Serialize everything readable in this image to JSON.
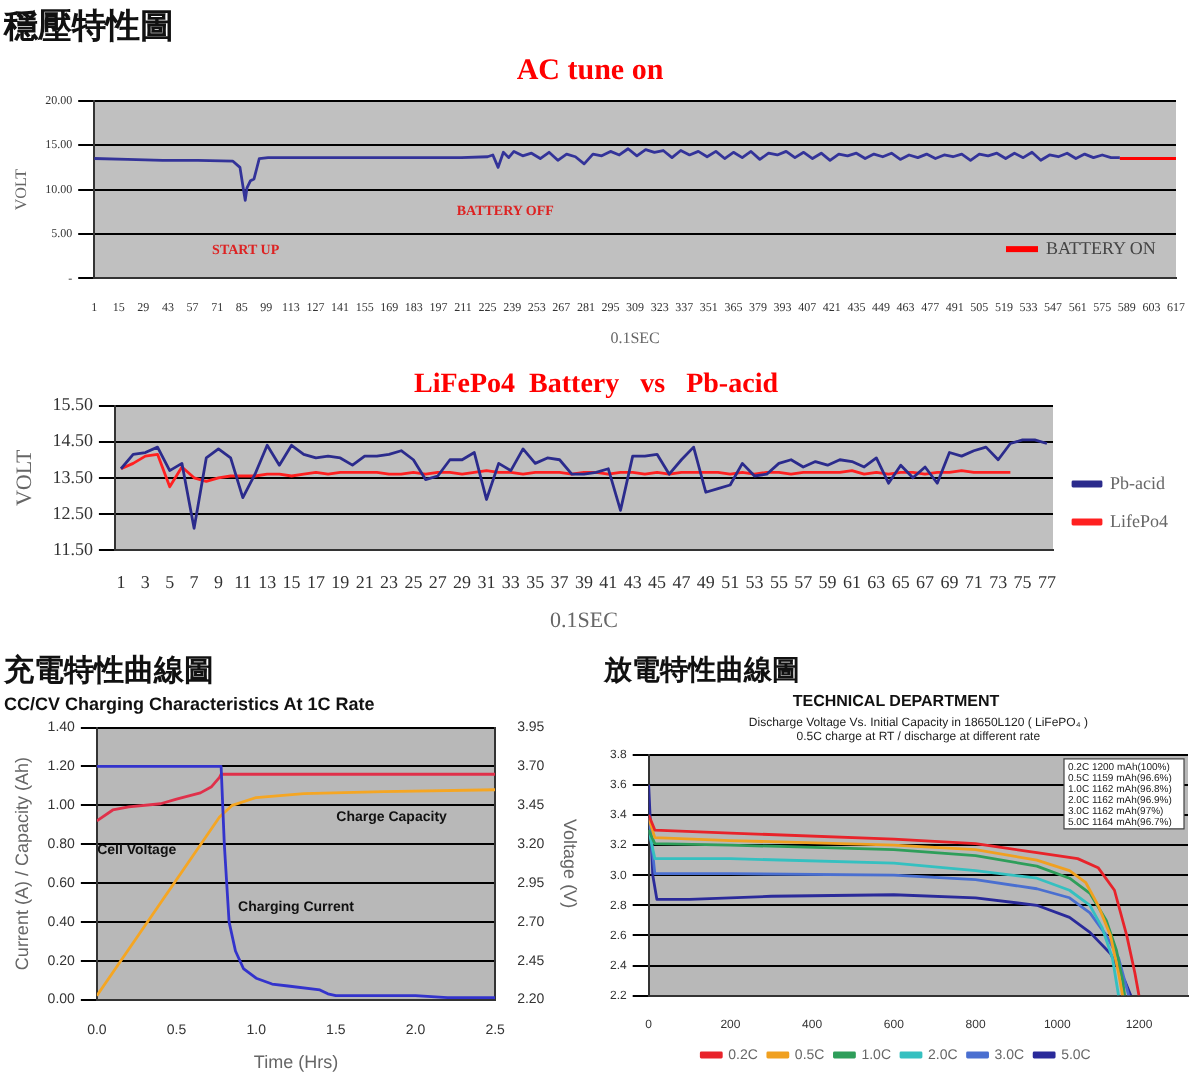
{
  "chart_data": [
    {
      "type": "line",
      "title": "穩壓特性圖",
      "subtitle": "AC tune on",
      "xlabel": "0.1SEC",
      "ylabel": "VOLT",
      "xlim": [
        1,
        617
      ],
      "xticks": [
        1,
        15,
        29,
        43,
        57,
        71,
        85,
        99,
        113,
        127,
        141,
        155,
        169,
        183,
        197,
        211,
        225,
        239,
        253,
        267,
        281,
        295,
        309,
        323,
        337,
        351,
        365,
        379,
        393,
        407,
        421,
        435,
        449,
        463,
        477,
        491,
        505,
        519,
        533,
        547,
        561,
        575,
        589,
        603,
        617
      ],
      "ylim": [
        0,
        20
      ],
      "yticks": [
        {
          "value": 0,
          "label": "-"
        },
        {
          "value": 5,
          "label": "5.00"
        },
        {
          "value": 10,
          "label": "10.00"
        },
        {
          "value": 15,
          "label": "15.00"
        },
        {
          "value": 20,
          "label": "20.00"
        }
      ],
      "grid": "y",
      "legend": "right",
      "marker": "none",
      "line_style": "solid",
      "annotations": [
        "START UP",
        "BATTERY OFF"
      ],
      "series": [
        {
          "color": "#333399",
          "x": [
            1,
            20,
            40,
            60,
            80,
            84,
            86,
            87,
            88,
            90,
            92,
            95,
            100,
            120,
            150,
            180,
            210,
            225,
            228,
            231,
            234,
            237,
            240,
            245,
            250,
            255,
            260,
            265,
            270,
            275,
            280,
            285,
            290,
            295,
            300,
            305,
            310,
            315,
            320,
            325,
            330,
            335,
            340,
            345,
            350,
            355,
            360,
            365,
            370,
            375,
            380,
            385,
            390,
            395,
            400,
            405,
            410,
            415,
            420,
            425,
            430,
            435,
            440,
            445,
            450,
            455,
            460,
            465,
            470,
            475,
            480,
            485,
            490,
            495,
            500,
            505,
            510,
            515,
            520,
            525,
            530,
            535,
            540,
            545,
            550,
            555,
            560,
            565,
            570,
            575,
            580,
            585
          ],
          "values": [
            13.5,
            13.4,
            13.3,
            13.3,
            13.2,
            12.5,
            10,
            8.8,
            10.2,
            11,
            11.2,
            13.5,
            13.6,
            13.6,
            13.6,
            13.6,
            13.6,
            13.7,
            13.9,
            12.5,
            14.2,
            13.6,
            14.3,
            13.8,
            14.1,
            13.5,
            14.2,
            13.3,
            14.0,
            13.7,
            12.9,
            14.0,
            13.8,
            14.3,
            13.9,
            14.6,
            13.8,
            14.5,
            14.2,
            14.4,
            13.6,
            14.4,
            13.9,
            14.3,
            13.7,
            14.3,
            13.5,
            14.2,
            13.6,
            14.3,
            13.4,
            14.1,
            13.9,
            14.3,
            13.6,
            14.2,
            13.5,
            14.1,
            13.3,
            14.0,
            13.8,
            14.1,
            13.5,
            14.0,
            13.7,
            14.1,
            13.4,
            13.9,
            13.6,
            14.0,
            13.5,
            13.9,
            13.7,
            14.0,
            13.3,
            14.0,
            13.8,
            14.1,
            13.5,
            14.1,
            13.6,
            14.2,
            13.3,
            13.9,
            13.7,
            14.1,
            13.5,
            14.0,
            13.6,
            13.9,
            13.6,
            13.6
          ]
        },
        {
          "name": "BATTERY ON",
          "color": "#ff0000",
          "x": [
            585,
            617
          ],
          "values": [
            13.5,
            13.5
          ]
        }
      ]
    },
    {
      "type": "line",
      "title": "LiFePo4  Battery   vs   Pb-acid",
      "xlabel": "0.1SEC",
      "ylabel": "VOLT",
      "xlim": [
        0.5,
        77.5
      ],
      "xticks": [
        1,
        3,
        5,
        7,
        9,
        11,
        13,
        15,
        17,
        19,
        21,
        23,
        25,
        27,
        29,
        31,
        33,
        35,
        37,
        39,
        41,
        43,
        45,
        47,
        49,
        51,
        53,
        55,
        57,
        59,
        61,
        63,
        65,
        67,
        69,
        71,
        73,
        75,
        77
      ],
      "ylim": [
        11.5,
        15.5
      ],
      "yticks": [
        {
          "value": 11.5,
          "label": "11.50"
        },
        {
          "value": 12.5,
          "label": "12.50"
        },
        {
          "value": 13.5,
          "label": "13.50"
        },
        {
          "value": 14.5,
          "label": "14.50"
        },
        {
          "value": 15.5,
          "label": "15.50"
        }
      ],
      "grid": "y",
      "legend": "right",
      "marker": "none",
      "line_style": "solid",
      "series": [
        {
          "name": "Pb-acid",
          "color": "#2b2b8c",
          "x": [
            1,
            2,
            3,
            4,
            5,
            6,
            7,
            8,
            9,
            10,
            11,
            12,
            13,
            14,
            15,
            16,
            17,
            18,
            19,
            20,
            21,
            22,
            23,
            24,
            25,
            26,
            27,
            28,
            29,
            30,
            31,
            32,
            33,
            34,
            35,
            36,
            37,
            38,
            39,
            40,
            41,
            42,
            43,
            44,
            45,
            46,
            47,
            48,
            49,
            50,
            51,
            52,
            53,
            54,
            55,
            56,
            57,
            58,
            59,
            60,
            61,
            62,
            63,
            64,
            65,
            66,
            67,
            68,
            69,
            70,
            71,
            72,
            73,
            74,
            75,
            76,
            77
          ],
          "values": [
            13.75,
            14.15,
            14.2,
            14.35,
            13.7,
            13.9,
            12.1,
            14.05,
            14.3,
            14.05,
            12.95,
            13.6,
            14.4,
            13.85,
            14.4,
            14.15,
            14.05,
            14.1,
            14.05,
            13.85,
            14.1,
            14.1,
            14.15,
            14.25,
            14.0,
            13.45,
            13.55,
            14.0,
            14.0,
            14.2,
            12.9,
            13.9,
            13.7,
            14.3,
            13.9,
            14.05,
            14.0,
            13.6,
            13.6,
            13.65,
            13.75,
            12.6,
            14.1,
            14.1,
            14.15,
            13.6,
            14.0,
            14.35,
            13.1,
            13.2,
            13.3,
            13.9,
            13.55,
            13.6,
            13.9,
            14.0,
            13.8,
            13.95,
            13.85,
            14.0,
            13.95,
            13.8,
            14.05,
            13.35,
            13.85,
            13.5,
            13.8,
            13.35,
            14.2,
            14.1,
            14.25,
            14.35,
            14.0,
            14.45,
            14.55,
            14.55,
            14.45
          ]
        },
        {
          "name": "LifePo4",
          "color": "#ff2020",
          "x": [
            1,
            2,
            3,
            4,
            5,
            6,
            7,
            8,
            9,
            10,
            11,
            12,
            13,
            14,
            15,
            16,
            17,
            18,
            19,
            20,
            21,
            22,
            23,
            24,
            25,
            26,
            27,
            28,
            29,
            30,
            31,
            32,
            33,
            34,
            35,
            36,
            37,
            38,
            39,
            40,
            41,
            42,
            43,
            44,
            45,
            46,
            47,
            48,
            49,
            50,
            51,
            52,
            53,
            54,
            55,
            56,
            57,
            58,
            59,
            60,
            61,
            62,
            63,
            64,
            65,
            66,
            67,
            68,
            69,
            70,
            71,
            72,
            73,
            74
          ],
          "values": [
            13.75,
            13.9,
            14.1,
            14.15,
            13.25,
            13.8,
            13.5,
            13.4,
            13.5,
            13.55,
            13.55,
            13.55,
            13.6,
            13.6,
            13.55,
            13.6,
            13.65,
            13.6,
            13.65,
            13.65,
            13.65,
            13.65,
            13.6,
            13.6,
            13.65,
            13.6,
            13.65,
            13.65,
            13.6,
            13.65,
            13.7,
            13.65,
            13.65,
            13.6,
            13.65,
            13.65,
            13.65,
            13.6,
            13.65,
            13.65,
            13.6,
            13.65,
            13.65,
            13.6,
            13.65,
            13.6,
            13.65,
            13.65,
            13.65,
            13.65,
            13.6,
            13.65,
            13.6,
            13.65,
            13.65,
            13.6,
            13.65,
            13.65,
            13.65,
            13.65,
            13.7,
            13.6,
            13.65,
            13.6,
            13.65,
            13.65,
            13.6,
            13.65,
            13.65,
            13.7,
            13.65,
            13.65,
            13.65,
            13.65
          ]
        }
      ]
    },
    {
      "type": "line",
      "title": "充電特性曲線圖",
      "subtitle": "CC/CV Charging Characteristics At 1C Rate",
      "xlabel": "Time (Hrs)",
      "ylabel": "Current (A) / Capacity (Ah)",
      "y2label": "Voltage (V)",
      "xlim": [
        0,
        2.5
      ],
      "xticks": [
        {
          "value": 0,
          "label": "0.0"
        },
        {
          "value": 0.5,
          "label": "0.5"
        },
        {
          "value": 1,
          "label": "1.0"
        },
        {
          "value": 1.5,
          "label": "1.5"
        },
        {
          "value": 2,
          "label": "2.0"
        },
        {
          "value": 2.5,
          "label": "2.5"
        }
      ],
      "ylim": [
        0,
        1.4
      ],
      "yticks": [
        {
          "value": 0,
          "label": "0.00"
        },
        {
          "value": 0.2,
          "label": "0.20"
        },
        {
          "value": 0.4,
          "label": "0.40"
        },
        {
          "value": 0.6,
          "label": "0.60"
        },
        {
          "value": 0.8,
          "label": "0.80"
        },
        {
          "value": 1,
          "label": "1.00"
        },
        {
          "value": 1.2,
          "label": "1.20"
        },
        {
          "value": 1.4,
          "label": "1.40"
        }
      ],
      "y2lim": [
        2.2,
        3.95
      ],
      "y2ticks": [
        {
          "value": 2.2,
          "label": "2.20"
        },
        {
          "value": 2.45,
          "label": "2.45"
        },
        {
          "value": 2.7,
          "label": "2.70"
        },
        {
          "value": 2.95,
          "label": "2.95"
        },
        {
          "value": 3.2,
          "label": "3.20"
        },
        {
          "value": 3.45,
          "label": "3.45"
        },
        {
          "value": 3.7,
          "label": "3.70"
        },
        {
          "value": 3.95,
          "label": "3.95"
        }
      ],
      "grid": "y",
      "marker": "none",
      "line_style": "solid",
      "annotations": [
        "Cell Voltage",
        "Charging Current",
        "Charge Capacity"
      ],
      "series": [
        {
          "color": "#3333cc",
          "x": [
            0,
            0.77,
            0.78,
            0.8,
            0.83,
            0.87,
            0.92,
            1.0,
            1.1,
            1.2,
            1.4,
            1.45,
            1.5,
            2.0,
            2.2,
            2.5
          ],
          "values": [
            1.2,
            1.2,
            1.2,
            0.8,
            0.4,
            0.25,
            0.16,
            0.11,
            0.08,
            0.07,
            0.05,
            0.03,
            0.02,
            0.02,
            0.01,
            0.01
          ]
        },
        {
          "color": "#f5a623",
          "x": [
            0,
            0.77,
            0.85,
            1.0,
            1.3,
            1.8,
            2.5
          ],
          "values": [
            0.02,
            0.94,
            1.0,
            1.04,
            1.06,
            1.07,
            1.08
          ]
        },
        {
          "color": "#e0304a",
          "axis": "y2",
          "x": [
            0,
            0.1,
            0.2,
            0.4,
            0.5,
            0.65,
            0.72,
            0.77,
            0.78,
            2.5
          ],
          "values": [
            3.35,
            3.42,
            3.44,
            3.46,
            3.49,
            3.53,
            3.57,
            3.63,
            3.65,
            3.65
          ]
        }
      ]
    },
    {
      "type": "line",
      "title": "放電特性曲線圖",
      "subtitle": "TECHNICAL DEPARTMENT",
      "xlim": [
        0,
        1320
      ],
      "xticks": [
        0,
        200,
        400,
        600,
        800,
        1000,
        1200
      ],
      "ylim": [
        2.2,
        3.8
      ],
      "yticks": [
        2.2,
        2.4,
        2.6,
        2.8,
        {
          "value": 3,
          "label": "3.0"
        },
        3.2,
        3.4,
        3.6,
        3.8
      ],
      "grid": "y",
      "legend": "bottom",
      "marker": "none",
      "line_style": "solid",
      "annotations": [
        "Discharge Voltage Vs. Initial Capacity in 18650L120 ( LiFePO₄ )",
        "0.5C charge at RT / discharge at different rate",
        "0.2C 1200 mAh(100%)",
        "0.5C 1159 mAh(96.6%)",
        "1.0C 1162 mAh(96.8%)",
        "2.0C 1162 mAh(96.9%)",
        "3.0C 1162 mAh(97%)",
        "5.0C 1164 mAh(96.7%)"
      ],
      "series": [
        {
          "name": "0.2C",
          "color": "#e8232a",
          "x": [
            0,
            15,
            200,
            600,
            800,
            950,
            1050,
            1100,
            1140,
            1170,
            1190,
            1200
          ],
          "values": [
            3.4,
            3.3,
            3.28,
            3.24,
            3.21,
            3.15,
            3.11,
            3.05,
            2.9,
            2.6,
            2.35,
            2.2
          ]
        },
        {
          "name": "0.5C",
          "color": "#f0a020",
          "x": [
            0,
            15,
            200,
            600,
            800,
            950,
            1030,
            1070,
            1100,
            1130,
            1150,
            1160
          ],
          "values": [
            3.38,
            3.25,
            3.23,
            3.2,
            3.17,
            3.1,
            3.03,
            2.95,
            2.8,
            2.6,
            2.35,
            2.2
          ]
        },
        {
          "name": "1.0C",
          "color": "#2e9e5a",
          "x": [
            0,
            15,
            200,
            600,
            800,
            950,
            1030,
            1080,
            1120,
            1145,
            1160,
            1165
          ],
          "values": [
            3.3,
            3.21,
            3.2,
            3.17,
            3.13,
            3.06,
            2.98,
            2.88,
            2.7,
            2.5,
            2.3,
            2.2
          ]
        },
        {
          "name": "2.0C",
          "color": "#35c0c0",
          "x": [
            0,
            15,
            200,
            600,
            800,
            950,
            1030,
            1080,
            1110,
            1135,
            1150
          ],
          "values": [
            3.3,
            3.11,
            3.11,
            3.08,
            3.03,
            2.98,
            2.9,
            2.8,
            2.65,
            2.45,
            2.2
          ]
        },
        {
          "name": "3.0C",
          "color": "#4a6fd0",
          "x": [
            0,
            15,
            200,
            600,
            800,
            950,
            1030,
            1080,
            1120,
            1150,
            1170,
            1175
          ],
          "values": [
            3.4,
            3.01,
            3.01,
            3.0,
            2.97,
            2.91,
            2.85,
            2.75,
            2.6,
            2.45,
            2.25,
            2.2
          ]
        },
        {
          "name": "5.0C",
          "color": "#2a2a9a",
          "x": [
            0,
            10,
            20,
            100,
            300,
            600,
            800,
            950,
            1030,
            1080,
            1130,
            1165,
            1180
          ],
          "values": [
            3.6,
            3.0,
            2.84,
            2.84,
            2.86,
            2.87,
            2.85,
            2.8,
            2.72,
            2.62,
            2.48,
            2.3,
            2.2
          ]
        }
      ]
    }
  ]
}
